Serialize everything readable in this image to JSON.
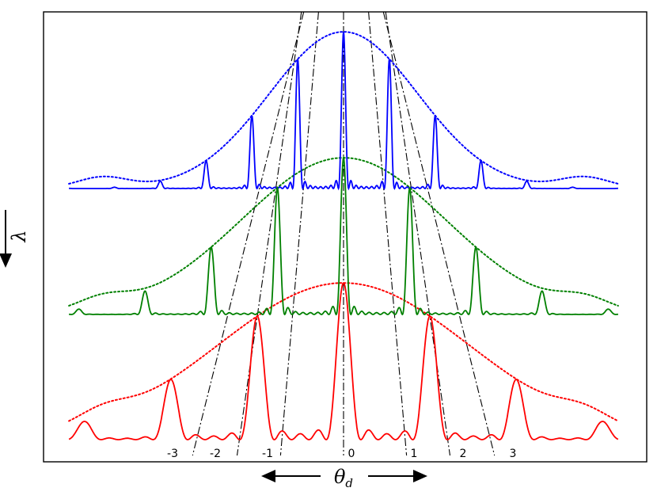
{
  "chart_data": {
    "type": "line",
    "title": "",
    "xlabel": "θ",
    "xlabel_subscript": "d",
    "ylabel": "λ",
    "grid": false,
    "legend": "none",
    "order_labels": [
      "-3",
      "-2",
      "-1",
      "0",
      "1",
      "2",
      "3"
    ],
    "order_positions": [
      -2.95,
      -2.02,
      -1.08,
      0,
      1.08,
      2.02,
      2.95
    ],
    "xlim": [
      -6,
      6
    ],
    "series": [
      {
        "color": "#0000ff",
        "baseline": 2,
        "grating_N": 9,
        "grating_pitch": 0.45,
        "envelope_width": 1.6,
        "envelope_peak": 1.26,
        "peak_heights": [
          0.15,
          0.5,
          1.0,
          1.26,
          1.0,
          0.5,
          0.15
        ]
      },
      {
        "color": "#008000",
        "baseline": 1,
        "grating_N": 9,
        "grating_pitch": 0.65,
        "envelope_width": 2.2,
        "envelope_peak": 1.26,
        "peak_heights": [
          0.15,
          0.5,
          1.0,
          1.26,
          1.0,
          0.5,
          0.15
        ]
      },
      {
        "color": "#ff0000",
        "baseline": 0,
        "grating_N": 5,
        "grating_pitch": 0.85,
        "envelope_width": 2.7,
        "envelope_peak": 1.26,
        "peak_heights": [
          0.1,
          0.45,
          1.0,
          1.26,
          1.0,
          0.45,
          0.1
        ]
      }
    ],
    "guide_lines": [
      {
        "order": -3,
        "top_x": -0.86,
        "bottom_x": -3.26
      },
      {
        "order": -2,
        "top_x": -0.91,
        "bottom_x": -2.3
      },
      {
        "order": -1,
        "top_x": -0.54,
        "bottom_x": -1.36
      },
      {
        "order": 0,
        "top_x": 0.0,
        "bottom_x": 0.0
      },
      {
        "order": 1,
        "top_x": 0.54,
        "bottom_x": 1.36
      },
      {
        "order": 2,
        "top_x": 0.91,
        "bottom_x": 2.3
      },
      {
        "order": 3,
        "top_x": 0.86,
        "bottom_x": 3.26
      }
    ]
  }
}
